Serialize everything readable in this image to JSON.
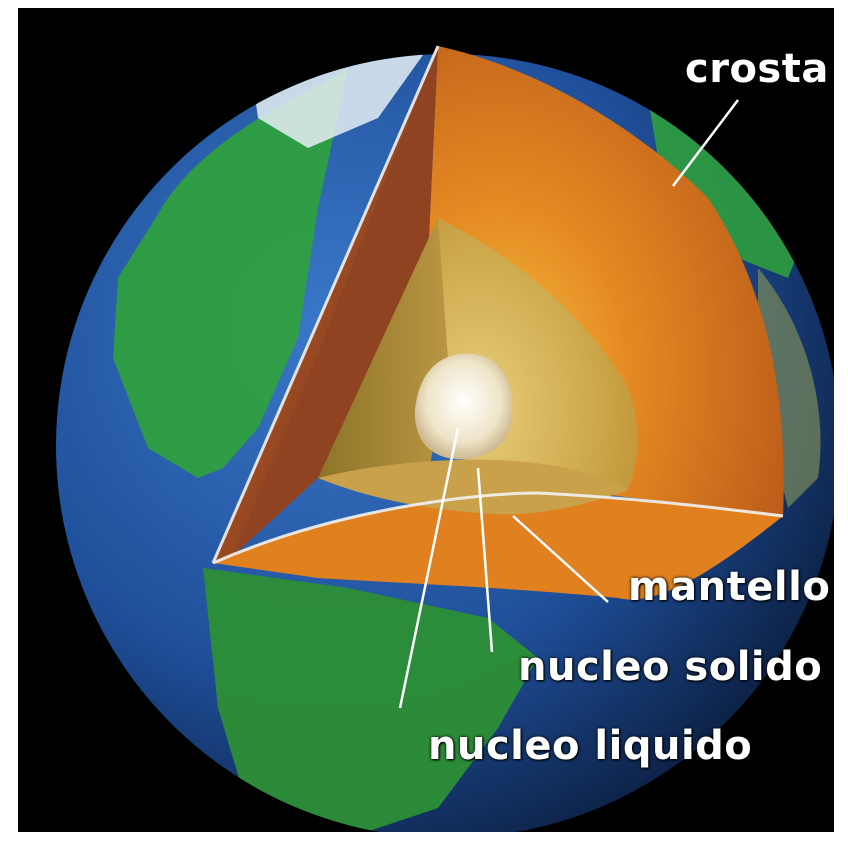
{
  "colors": {
    "background": "#000000",
    "ocean": "#1f4f9a",
    "land": "#2fa33a",
    "crust": "#8a3f1c",
    "mantle": "#e0801e",
    "outer_core": "#c9a14a",
    "inner_core": "#f3eddc",
    "label_text": "#ffffff"
  },
  "labels": {
    "crust": "crosta",
    "mantle": "mantello",
    "inner_core": "nucleo solido",
    "outer_core": "nucleo liquido"
  }
}
